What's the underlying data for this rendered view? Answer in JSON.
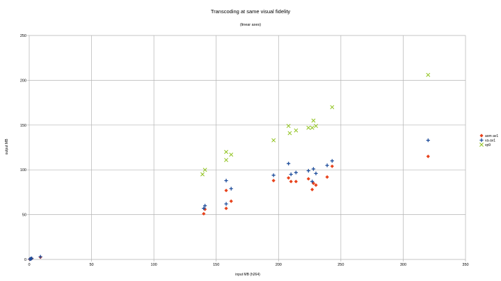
{
  "chart_data": {
    "type": "scatter",
    "title": "Transcoding at same visual fidelity",
    "subtitle": "(linear axes)",
    "xlabel": "input MB (h264)",
    "ylabel": "output MB",
    "xlim": [
      0,
      350
    ],
    "ylim": [
      0,
      250
    ],
    "xticks": [
      0,
      50,
      100,
      150,
      200,
      250,
      300,
      350
    ],
    "yticks": [
      0,
      50,
      100,
      150,
      200,
      250
    ],
    "grid": true,
    "legend_position": "right",
    "series": [
      {
        "name": "aom av1",
        "marker": "diamond",
        "color": "#e8431c",
        "points": [
          [
            0.5,
            0.3
          ],
          [
            1,
            0.5
          ],
          [
            1.5,
            0.8
          ],
          [
            2,
            1
          ],
          [
            9,
            2.5
          ],
          [
            140,
            51
          ],
          [
            141,
            56
          ],
          [
            158,
            57
          ],
          [
            158,
            77
          ],
          [
            162,
            65
          ],
          [
            196,
            88
          ],
          [
            208,
            91
          ],
          [
            210,
            87
          ],
          [
            214,
            87
          ],
          [
            224,
            90
          ],
          [
            227,
            78
          ],
          [
            228,
            85
          ],
          [
            230,
            83
          ],
          [
            239,
            92
          ],
          [
            243,
            104
          ],
          [
            320,
            115
          ]
        ]
      },
      {
        "name": "va-av1",
        "marker": "plus",
        "color": "#1f4e9c",
        "points": [
          [
            0.5,
            0.4
          ],
          [
            1,
            0.6
          ],
          [
            1.5,
            0.9
          ],
          [
            2,
            1.2
          ],
          [
            9,
            3
          ],
          [
            140,
            57
          ],
          [
            141,
            60
          ],
          [
            158,
            62
          ],
          [
            158,
            88
          ],
          [
            162,
            79
          ],
          [
            196,
            94
          ],
          [
            208,
            107
          ],
          [
            210,
            95
          ],
          [
            214,
            97
          ],
          [
            224,
            99
          ],
          [
            227,
            87
          ],
          [
            228,
            101
          ],
          [
            230,
            96
          ],
          [
            239,
            105
          ],
          [
            243,
            110
          ],
          [
            320,
            133
          ]
        ]
      },
      {
        "name": "vp9",
        "marker": "x",
        "color": "#8fc21c",
        "points": [
          [
            139,
            95
          ],
          [
            141,
            100
          ],
          [
            158,
            111
          ],
          [
            158,
            120
          ],
          [
            162,
            117
          ],
          [
            196,
            133
          ],
          [
            208,
            149
          ],
          [
            209,
            141
          ],
          [
            214,
            144
          ],
          [
            224,
            147
          ],
          [
            227,
            147
          ],
          [
            228,
            155
          ],
          [
            230,
            149
          ],
          [
            243,
            170
          ],
          [
            320,
            206
          ]
        ]
      }
    ]
  }
}
